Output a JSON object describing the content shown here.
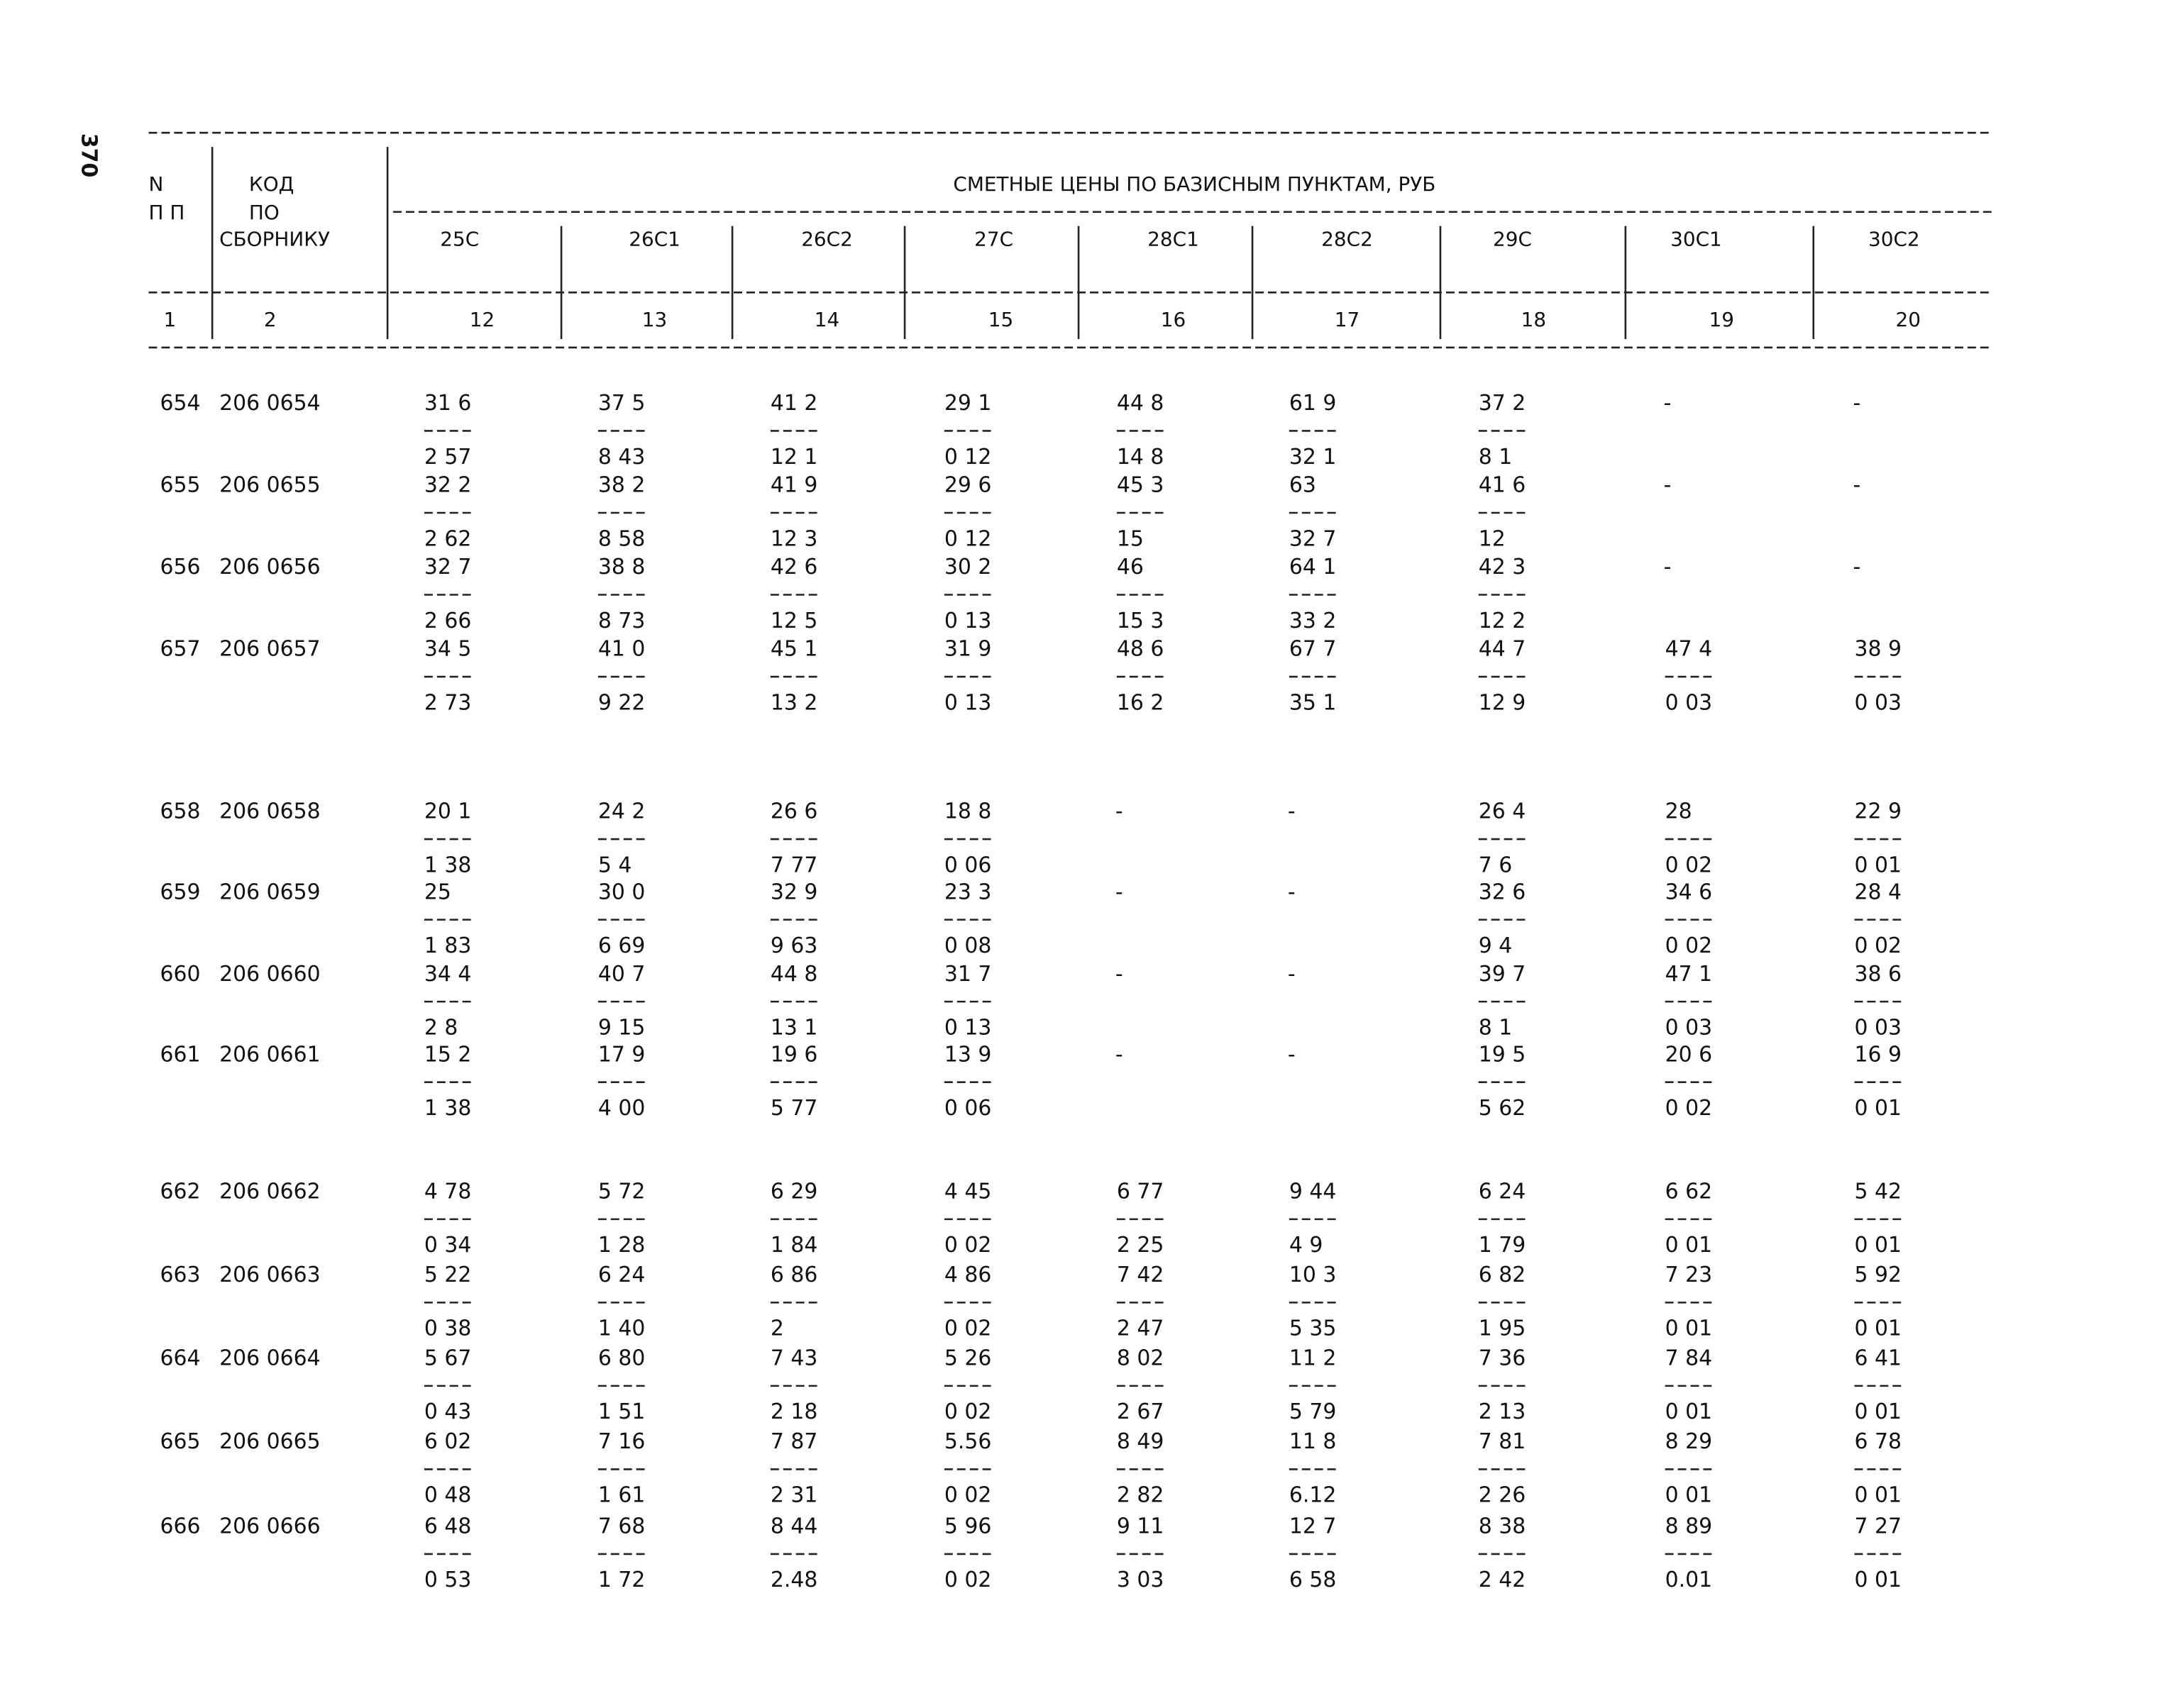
{
  "page_number": "370",
  "header": {
    "n_label": [
      "N",
      "П П"
    ],
    "code_label": [
      "КОД",
      "ПО",
      "СБОРНИКУ"
    ],
    "title": "СМЕТНЫЕ ЦЕНЫ ПО БАЗИСНЫМ ПУНКТАМ, РУБ",
    "columns": [
      "25С",
      "26С1",
      "26С2",
      "27С",
      "28С1",
      "28С2",
      "29С",
      "30С1",
      "30С2"
    ],
    "numbers": [
      "1",
      "2",
      "12",
      "13",
      "14",
      "15",
      "16",
      "17",
      "18",
      "19",
      "20"
    ]
  },
  "rows": [
    {
      "n": "654",
      "code": "206 0654",
      "cells": [
        [
          "31 6",
          "2 57"
        ],
        [
          "37 5",
          "8 43"
        ],
        [
          "41 2",
          "12 1"
        ],
        [
          "29 1",
          "0 12"
        ],
        [
          "44 8",
          "14 8"
        ],
        [
          "61 9",
          "32 1"
        ],
        [
          "37 2",
          "8 1"
        ],
        "-",
        "-"
      ]
    },
    {
      "n": "655",
      "code": "206 0655",
      "cells": [
        [
          "32 2",
          "2 62"
        ],
        [
          "38 2",
          "8 58"
        ],
        [
          "41 9",
          "12 3"
        ],
        [
          "29 6",
          "0 12"
        ],
        [
          "45 3",
          "15"
        ],
        [
          "63",
          "32 7"
        ],
        [
          "41 6",
          "12"
        ],
        "-",
        "-"
      ]
    },
    {
      "n": "656",
      "code": "206 0656",
      "cells": [
        [
          "32 7",
          "2 66"
        ],
        [
          "38 8",
          "8 73"
        ],
        [
          "42 6",
          "12 5"
        ],
        [
          "30 2",
          "0 13"
        ],
        [
          "46",
          "15 3"
        ],
        [
          "64 1",
          "33 2"
        ],
        [
          "42 3",
          "12 2"
        ],
        "-",
        "-"
      ]
    },
    {
      "n": "657",
      "code": "206 0657",
      "cells": [
        [
          "34 5",
          "2 73"
        ],
        [
          "41 0",
          "9 22"
        ],
        [
          "45 1",
          "13 2"
        ],
        [
          "31 9",
          "0 13"
        ],
        [
          "48 6",
          "16 2"
        ],
        [
          "67 7",
          "35 1"
        ],
        [
          "44 7",
          "12 9"
        ],
        [
          "47 4",
          "0 03"
        ],
        [
          "38 9",
          "0 03"
        ]
      ]
    },
    {
      "n": "658",
      "code": "206 0658",
      "cells": [
        [
          "20 1",
          "1 38"
        ],
        [
          "24 2",
          "5 4"
        ],
        [
          "26 6",
          "7 77"
        ],
        [
          "18 8",
          "0 06"
        ],
        "-",
        "-",
        [
          "26 4",
          "7 6"
        ],
        [
          "28",
          "0 02"
        ],
        [
          "22 9",
          "0 01"
        ]
      ]
    },
    {
      "n": "659",
      "code": "206 0659",
      "cells": [
        [
          "25",
          "1 83"
        ],
        [
          "30 0",
          "6 69"
        ],
        [
          "32 9",
          "9 63"
        ],
        [
          "23 3",
          "0 08"
        ],
        "-",
        "-",
        [
          "32 6",
          "9 4"
        ],
        [
          "34 6",
          "0 02"
        ],
        [
          "28 4",
          "0 02"
        ]
      ]
    },
    {
      "n": "660",
      "code": "206 0660",
      "cells": [
        [
          "34 4",
          "2 8"
        ],
        [
          "40 7",
          "9 15"
        ],
        [
          "44 8",
          "13 1"
        ],
        [
          "31 7",
          "0 13"
        ],
        "-",
        "-",
        [
          "39 7",
          "8 1"
        ],
        [
          "47 1",
          "0 03"
        ],
        [
          "38 6",
          "0 03"
        ]
      ]
    },
    {
      "n": "661",
      "code": "206 0661",
      "cells": [
        [
          "15 2",
          "1 38"
        ],
        [
          "17 9",
          "4 00"
        ],
        [
          "19 6",
          "5 77"
        ],
        [
          "13 9",
          "0 06"
        ],
        "-",
        "-",
        [
          "19 5",
          "5 62"
        ],
        [
          "20 6",
          "0 02"
        ],
        [
          "16 9",
          "0 01"
        ]
      ]
    },
    {
      "n": "662",
      "code": "206 0662",
      "cells": [
        [
          "4 78",
          "0 34"
        ],
        [
          "5 72",
          "1 28"
        ],
        [
          "6 29",
          "1 84"
        ],
        [
          "4 45",
          "0 02"
        ],
        [
          "6 77",
          "2 25"
        ],
        [
          "9 44",
          "4 9"
        ],
        [
          "6 24",
          "1 79"
        ],
        [
          "6 62",
          "0 01"
        ],
        [
          "5 42",
          "0 01"
        ]
      ]
    },
    {
      "n": "663",
      "code": "206 0663",
      "cells": [
        [
          "5 22",
          "0 38"
        ],
        [
          "6 24",
          "1 40"
        ],
        [
          "6 86",
          "2"
        ],
        [
          "4 86",
          "0 02"
        ],
        [
          "7 42",
          "2 47"
        ],
        [
          "10 3",
          "5 35"
        ],
        [
          "6 82",
          "1 95"
        ],
        [
          "7 23",
          "0 01"
        ],
        [
          "5 92",
          "0 01"
        ]
      ]
    },
    {
      "n": "664",
      "code": "206 0664",
      "cells": [
        [
          "5 67",
          "0 43"
        ],
        [
          "6 80",
          "1 51"
        ],
        [
          "7 43",
          "2 18"
        ],
        [
          "5 26",
          "0 02"
        ],
        [
          "8 02",
          "2 67"
        ],
        [
          "11 2",
          "5 79"
        ],
        [
          "7 36",
          "2 13"
        ],
        [
          "7 84",
          "0 01"
        ],
        [
          "6 41",
          "0 01"
        ]
      ]
    },
    {
      "n": "665",
      "code": "206 0665",
      "cells": [
        [
          "6 02",
          "0 48"
        ],
        [
          "7 16",
          "1 61"
        ],
        [
          "7 87",
          "2 31"
        ],
        [
          "5.56",
          "0 02"
        ],
        [
          "8 49",
          "2 82"
        ],
        [
          "11 8",
          "6.12"
        ],
        [
          "7 81",
          "2 26"
        ],
        [
          "8 29",
          "0 01"
        ],
        [
          "6 78",
          "0 01"
        ]
      ]
    },
    {
      "n": "666",
      "code": "206 0666",
      "cells": [
        [
          "6 48",
          "0 53"
        ],
        [
          "7 68",
          "1 72"
        ],
        [
          "8 44",
          "2.48"
        ],
        [
          "5 96",
          "0 02"
        ],
        [
          "9 11",
          "3 03"
        ],
        [
          "12 7",
          "6 58"
        ],
        [
          "8 38",
          "2 42"
        ],
        [
          "8 89",
          "0.01"
        ],
        [
          "7 27",
          "0 01"
        ]
      ]
    }
  ]
}
